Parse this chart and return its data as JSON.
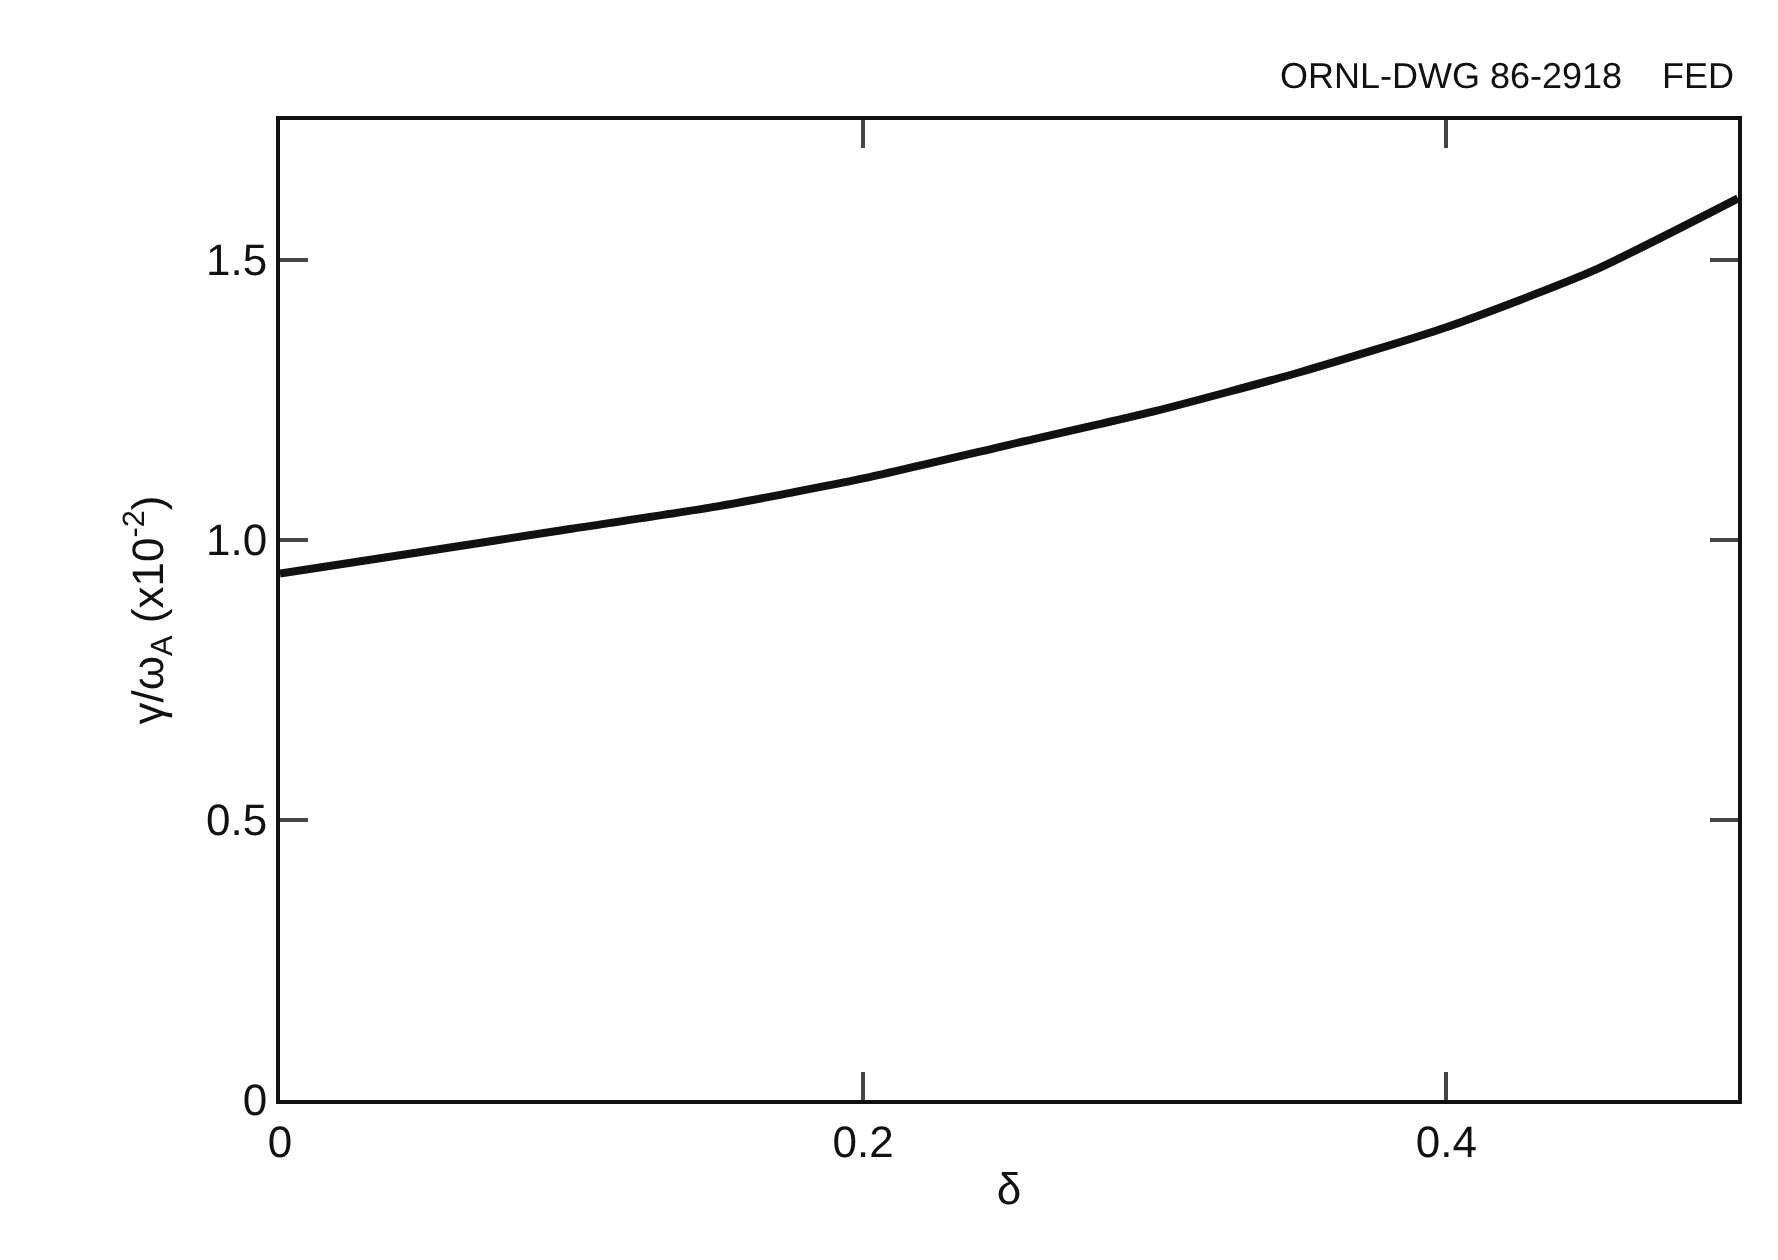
{
  "chart_data": {
    "type": "line",
    "xlabel": "δ",
    "ylabel": "γ/ω$_{A}$ (x10$^{-2}$)",
    "annotations": [
      "ORNL-DWG 86-2918    FED"
    ],
    "x": [
      0,
      0.05,
      0.1,
      0.15,
      0.2,
      0.25,
      0.3,
      0.35,
      0.4,
      0.45,
      0.5
    ],
    "series": [
      {
        "color": "#111111",
        "values": [
          0.94,
          0.98,
          1.02,
          1.06,
          1.11,
          1.17,
          1.23,
          1.3,
          1.38,
          1.48,
          1.61
        ]
      }
    ],
    "xlim": [
      0,
      0.5
    ],
    "xticks": [
      0,
      0.2,
      0.4
    ],
    "ylim": [
      0,
      1.75
    ],
    "yticks": [
      0,
      0.5,
      {
        "value": 1,
        "label": "1.0"
      },
      1.5
    ],
    "legend": false,
    "marker": "none",
    "line_style": "solid"
  }
}
